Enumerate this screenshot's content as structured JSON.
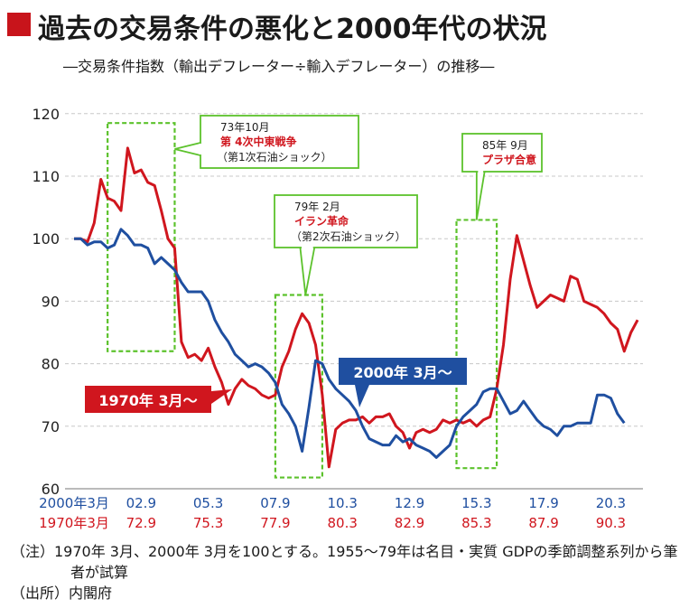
{
  "title": "過去の交易条件の悪化と2000年代の状況",
  "subtitle": "―交易条件指数（輸出デフレーター÷輸入デフレーター）の推移―",
  "colors": {
    "red_series": "#d0161e",
    "blue_series": "#1f4fa0",
    "highlight_box": "#5cc22c",
    "title_mark": "#c8141b",
    "grid": "#c8c8c8"
  },
  "chart_data": {
    "type": "line",
    "ylim": [
      60,
      120
    ],
    "yticks": [
      "60",
      "70",
      "80",
      "90",
      "100",
      "110",
      "120"
    ],
    "xtick_rows": {
      "row_2000s": [
        "2000年3月",
        "02.9",
        "05.3",
        "07.9",
        "10.3",
        "12.9",
        "15.3",
        "17.9",
        "20.3"
      ],
      "row_1970s": [
        "1970年3月",
        "72.9",
        "75.3",
        "77.9",
        "80.3",
        "82.9",
        "85.3",
        "87.9",
        "90.3"
      ]
    },
    "x_quarters_from_start": [
      0,
      10,
      20,
      30,
      40,
      50,
      60,
      70,
      80
    ],
    "series": [
      {
        "name": "1970年 3月〜",
        "color": "red",
        "values": [
          100,
          100,
          99.5,
          102.5,
          109.5,
          106.5,
          106,
          104.5,
          114.5,
          110.5,
          111,
          109,
          108.5,
          104.5,
          100,
          98.5,
          83.5,
          81,
          81.5,
          80.5,
          82.5,
          79.5,
          77,
          73.5,
          76,
          77.5,
          76.5,
          76,
          75,
          74.5,
          75,
          79.5,
          82,
          85.5,
          88,
          86.5,
          83,
          75,
          63.5,
          69.5,
          70.5,
          71,
          71,
          71.5,
          70.5,
          71.5,
          71.5,
          72,
          70,
          69,
          66.5,
          69,
          69.5,
          69,
          69.5,
          71,
          70.5,
          71,
          70.5,
          71,
          70,
          71,
          71.5,
          76,
          83,
          93.5,
          100.5,
          96.5,
          92.5,
          89,
          90,
          91,
          90.5,
          90,
          94,
          93.5,
          90,
          89.5,
          89,
          88,
          86.5,
          85.5,
          82,
          85,
          87
        ]
      },
      {
        "name": "2000年 3月〜",
        "color": "blue",
        "values": [
          100,
          100,
          99,
          99.5,
          99.5,
          98.5,
          99,
          101.5,
          100.5,
          99,
          99,
          98.5,
          96,
          97,
          96,
          95,
          93,
          91.5,
          91.5,
          91.5,
          90,
          87,
          85,
          83.5,
          81.5,
          80.5,
          79.5,
          80,
          79.5,
          78.5,
          77,
          73.5,
          72,
          70,
          66,
          73,
          80.5,
          80,
          77.5,
          76,
          75,
          74,
          72.5,
          70,
          68,
          67.5,
          67,
          67,
          68.5,
          67.5,
          68,
          67,
          66.5,
          66,
          65,
          66,
          67,
          70,
          71.5,
          72.5,
          73.5,
          75.5,
          76,
          76,
          74,
          72,
          72.5,
          74,
          72.5,
          71,
          70,
          69.5,
          68.5,
          70,
          70,
          70.5,
          70.5,
          70.5,
          75,
          75,
          74.5,
          72,
          70.5
        ]
      }
    ],
    "series_labels": [
      {
        "series": 0,
        "text": "1970年 3月〜"
      },
      {
        "series": 1,
        "text": "2000年 3月〜"
      }
    ],
    "annotations": [
      {
        "date": "73年10月",
        "event": "第 4次中東戦争",
        "note": "（第1次石油ショック）",
        "x_from": 5,
        "x_to": 15,
        "y_from": 82,
        "y_to": 118.5
      },
      {
        "date": "79年 2月",
        "event": "イラン革命",
        "note": "（第2次石油ショック）",
        "x_from": 30,
        "x_to": 37,
        "y_from": 61.8,
        "y_to": 91
      },
      {
        "date": "85年 9月",
        "event": "プラザ合意",
        "note": "",
        "x_from": 57,
        "x_to": 63,
        "y_from": 63.3,
        "y_to": 103
      }
    ]
  },
  "notes": {
    "line1": "（注）1970年 3月、2000年 3月を100とする。1955〜79年は名目・実質 GDPの季節調整系列から筆者が試算",
    "source": "（出所）内閣府"
  }
}
